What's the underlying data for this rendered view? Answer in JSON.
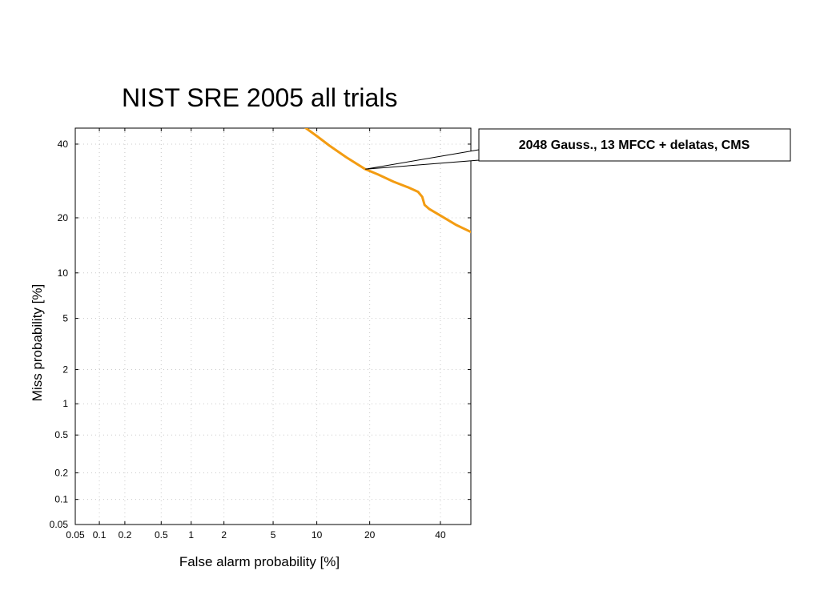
{
  "chart_data": {
    "type": "line",
    "title": "NIST SRE 2005 all trials",
    "xlabel": "False alarm probability [%]",
    "ylabel": "Miss probability [%]",
    "scale": "normal-deviate (DET)",
    "xlim": [
      0.05,
      50
    ],
    "ylim": [
      0.05,
      45
    ],
    "xticks": [
      {
        "v": 0.05,
        "label": "0.05"
      },
      {
        "v": 0.1,
        "label": "0.1"
      },
      {
        "v": 0.2,
        "label": "0.2"
      },
      {
        "v": 0.5,
        "label": "0.5"
      },
      {
        "v": 1,
        "label": "1"
      },
      {
        "v": 2,
        "label": "2"
      },
      {
        "v": 5,
        "label": "5"
      },
      {
        "v": 10,
        "label": "10"
      },
      {
        "v": 20,
        "label": "20"
      },
      {
        "v": 40,
        "label": "40"
      }
    ],
    "yticks": [
      {
        "v": 0.05,
        "label": "0.05"
      },
      {
        "v": 0.1,
        "label": "0.1"
      },
      {
        "v": 0.2,
        "label": "0.2"
      },
      {
        "v": 0.5,
        "label": "0.5"
      },
      {
        "v": 1,
        "label": "1"
      },
      {
        "v": 2,
        "label": "2"
      },
      {
        "v": 5,
        "label": "5"
      },
      {
        "v": 10,
        "label": "10"
      },
      {
        "v": 20,
        "label": "20"
      },
      {
        "v": 40,
        "label": "40"
      }
    ],
    "grid": true,
    "series": [
      {
        "name": "2048 Gauss., 13 MFCC + delatas, CMS",
        "color": "#f39c12",
        "points": [
          [
            8.5,
            45
          ],
          [
            10,
            42.5
          ],
          [
            12,
            39.5
          ],
          [
            15,
            36
          ],
          [
            19,
            32.5
          ],
          [
            22,
            31
          ],
          [
            26,
            29
          ],
          [
            30,
            27.5
          ],
          [
            33,
            26.3
          ],
          [
            34.3,
            25
          ],
          [
            35,
            23
          ],
          [
            36.5,
            22
          ],
          [
            40,
            20.5
          ],
          [
            45,
            18.5
          ],
          [
            50,
            17
          ]
        ]
      }
    ],
    "annotation": {
      "text": "2048 Gauss., 13 MFCC + delatas, CMS",
      "target": [
        19,
        32.5
      ]
    }
  }
}
